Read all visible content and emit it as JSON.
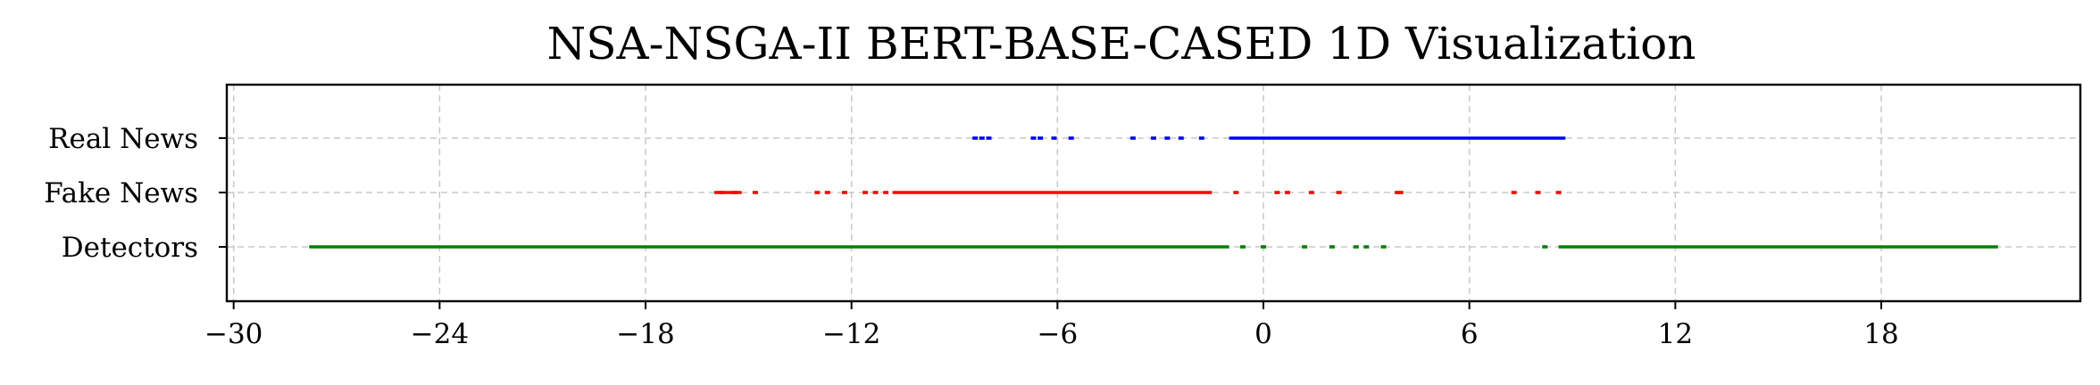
{
  "chart_data": {
    "type": "scatter",
    "title": "NSA-NSGA-II BERT-BASE-CASED 1D Visualization",
    "xlabel": "",
    "ylabel": "",
    "xlim": [
      -30.2,
      23.8
    ],
    "xticks": [
      -30,
      -24,
      -18,
      -12,
      -6,
      0,
      6,
      12,
      18
    ],
    "xtick_labels": [
      "−30",
      "−24",
      "−18",
      "−12",
      "−6",
      "0",
      "6",
      "12",
      "18"
    ],
    "categories": [
      "Real News",
      "Fake News",
      "Detectors"
    ],
    "grid": true,
    "series": [
      {
        "name": "Real News",
        "color": "#0000ff",
        "points": [
          -8.4,
          -8.2,
          -8.0,
          -6.7,
          -6.5,
          -6.1,
          -5.6,
          -3.8,
          -3.2,
          -2.8,
          -2.4,
          -1.8
        ],
        "dense_ranges": [
          [
            -1.0,
            8.8
          ]
        ]
      },
      {
        "name": "Fake News",
        "color": "#ff0000",
        "points": [
          -15.8,
          -15.4,
          -14.8,
          -13.0,
          -12.7,
          -12.2,
          -11.6,
          -11.3,
          -11.0,
          -0.8,
          0.4,
          0.7,
          1.4,
          2.2,
          3.9,
          4.0,
          7.3,
          8.0,
          8.6
        ],
        "dense_ranges": [
          [
            -16.0,
            -15.2
          ],
          [
            -10.8,
            -1.5
          ]
        ]
      },
      {
        "name": "Detectors",
        "color": "#008000",
        "points": [
          -0.6,
          0.0,
          1.2,
          2.0,
          2.7,
          3.0,
          3.5,
          8.2
        ],
        "dense_ranges": [
          [
            -27.8,
            -1.0
          ],
          [
            8.6,
            21.4
          ]
        ]
      }
    ]
  }
}
